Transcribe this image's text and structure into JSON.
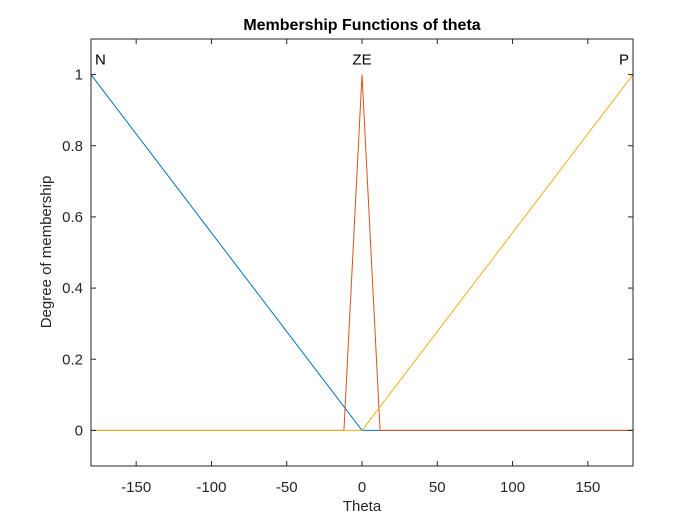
{
  "chart_data": {
    "type": "line",
    "title": "Membership Functions of theta",
    "xlabel": "Theta",
    "ylabel": "Degree of membership",
    "xlim": [
      -180,
      180
    ],
    "ylim": [
      -0.1,
      1.1
    ],
    "xticks": [
      -150,
      -100,
      -50,
      0,
      50,
      100,
      150
    ],
    "yticks": [
      0,
      0.2,
      0.4,
      0.6,
      0.8,
      1
    ],
    "ytick_labels": [
      "0",
      "0.2",
      "0.4",
      "0.6",
      "0.8",
      "1"
    ],
    "grid": false,
    "series": [
      {
        "name": "N",
        "color": "#0072bd",
        "x": [
          -180,
          0,
          180
        ],
        "y": [
          1,
          0,
          0
        ]
      },
      {
        "name": "ZE",
        "color": "#d95319",
        "x": [
          -180,
          -12,
          0,
          12,
          180
        ],
        "y": [
          0,
          0,
          1,
          0,
          0
        ]
      },
      {
        "name": "P",
        "color": "#edb120",
        "x": [
          -180,
          0,
          180
        ],
        "y": [
          0,
          0,
          1
        ]
      }
    ]
  }
}
